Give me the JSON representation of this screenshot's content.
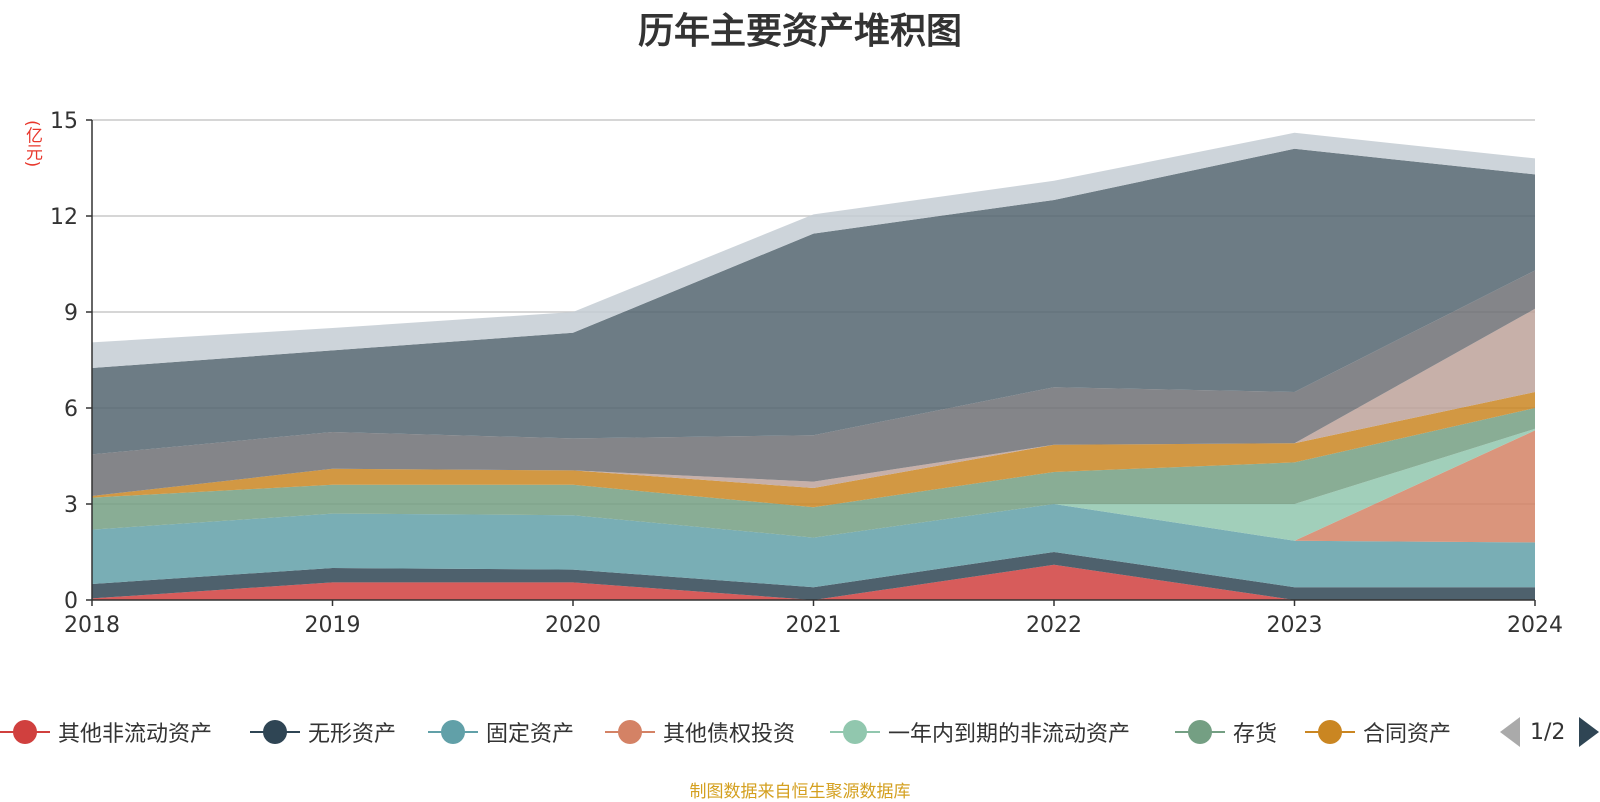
{
  "title": "历年主要资产堆积图",
  "unit_label": "(亿元)",
  "source_text": "制图数据来自恒生聚源数据库",
  "pager": {
    "text": "1/2"
  },
  "colors": {
    "其他非流动资产": "#d0403e",
    "无形资产": "#2f4554",
    "固定资产": "#61a0a8",
    "其他债权投资": "#d48265",
    "一年内到期的非流动资产": "#91c7ae",
    "存货": "#749f83",
    "合同资产": "#ca8622",
    "series8": "#bda29a",
    "series9": "#6e7074",
    "series10": "#546570",
    "series11": "#c4ccd3"
  },
  "chart_data": {
    "type": "area",
    "stacked": true,
    "title": "历年主要资产堆积图",
    "ylabel": "(亿元)",
    "categories": [
      "2018",
      "2019",
      "2020",
      "2021",
      "2022",
      "2023",
      "2024"
    ],
    "ylim": [
      0,
      15
    ],
    "yticks": [
      0,
      3,
      6,
      9,
      12,
      15
    ],
    "grid": true,
    "legend_position": "bottom",
    "series": [
      {
        "name": "其他非流动资产",
        "values": [
          0.05,
          0.55,
          0.55,
          0.0,
          1.1,
          0.0,
          0.0
        ]
      },
      {
        "name": "无形资产",
        "values": [
          0.45,
          0.45,
          0.4,
          0.4,
          0.4,
          0.4,
          0.4
        ]
      },
      {
        "name": "固定资产",
        "values": [
          1.7,
          1.7,
          1.7,
          1.55,
          1.5,
          1.45,
          1.4
        ]
      },
      {
        "name": "其他债权投资",
        "values": [
          0.0,
          0.0,
          0.0,
          0.0,
          0.0,
          0.0,
          3.5
        ]
      },
      {
        "name": "一年内到期的非流动资产",
        "values": [
          0.0,
          0.0,
          0.0,
          0.0,
          0.0,
          1.15,
          0.05
        ]
      },
      {
        "name": "存货",
        "values": [
          1.0,
          0.9,
          0.95,
          0.95,
          1.0,
          1.3,
          0.65
        ]
      },
      {
        "name": "合同资产",
        "values": [
          0.05,
          0.5,
          0.45,
          0.6,
          0.85,
          0.6,
          0.5
        ]
      },
      {
        "values": [
          0.0,
          0.0,
          0.0,
          0.2,
          0.0,
          0.0,
          2.6
        ]
      },
      {
        "values": [
          1.3,
          1.15,
          1.0,
          1.45,
          1.8,
          1.6,
          1.2
        ]
      },
      {
        "values": [
          2.7,
          2.55,
          3.3,
          6.3,
          5.85,
          7.6,
          3.0
        ]
      },
      {
        "values": [
          0.8,
          0.7,
          0.65,
          0.6,
          0.6,
          0.5,
          0.5
        ]
      }
    ]
  },
  "legend": [
    {
      "name": "其他非流动资产",
      "color": "#d0403e"
    },
    {
      "name": "无形资产",
      "color": "#2f4554"
    },
    {
      "name": "固定资产",
      "color": "#61a0a8"
    },
    {
      "name": "其他债权投资",
      "color": "#d48265"
    },
    {
      "name": "一年内到期的非流动资产",
      "color": "#91c7ae"
    },
    {
      "name": "存货",
      "color": "#749f83"
    },
    {
      "name": "合同资产",
      "color": "#ca8622"
    }
  ]
}
